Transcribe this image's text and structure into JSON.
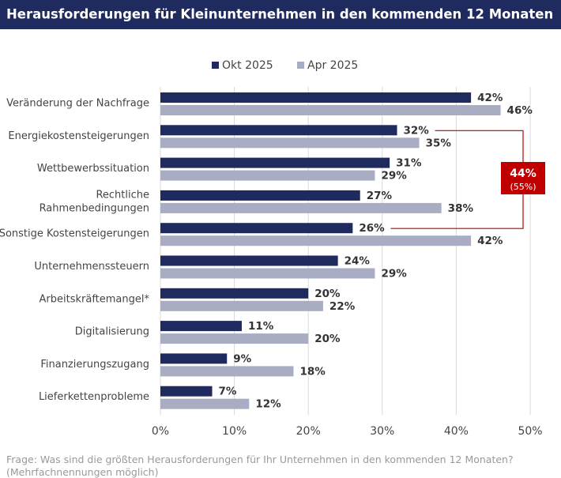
{
  "chart_data": {
    "type": "hbar",
    "title": "Herausforderungen für Kleinunternehmen in den kommenden 12 Monaten",
    "categories": [
      "Veränderung der Nachfrage",
      "Energiekostensteigerungen",
      "Wettbewerbssituation",
      "Rechtliche\nRahmenbedingungen",
      "Sonstige Kostensteigerungen",
      "Unternehmenssteuern",
      "Arbeitskräftemangel*",
      "Digitalisierung",
      "Finanzierungszugang",
      "Lieferkettenprobleme"
    ],
    "series": [
      {
        "name": "Okt 2025",
        "color": "#1f2a5e",
        "values": [
          42,
          32,
          31,
          27,
          26,
          24,
          20,
          11,
          9,
          7
        ],
        "value_labels": [
          "42%",
          "32%",
          "31%",
          "27%",
          "26%",
          "24%",
          "20%",
          "11%",
          "9%",
          "7%"
        ]
      },
      {
        "name": "Apr 2025",
        "color": "#a9adc4",
        "values": [
          46,
          35,
          29,
          38,
          42,
          29,
          22,
          20,
          18,
          12
        ],
        "value_labels": [
          "46%",
          "35%",
          "29%",
          "38%",
          "42%",
          "29%",
          "22%",
          "20%",
          "18%",
          "12%"
        ]
      }
    ],
    "xlim": [
      0,
      50
    ],
    "xticks": [
      {
        "value": 0,
        "label": "0%"
      },
      {
        "value": 10,
        "label": "10%"
      },
      {
        "value": 20,
        "label": "20%"
      },
      {
        "value": 30,
        "label": "30%"
      },
      {
        "value": 40,
        "label": "40%"
      },
      {
        "value": 50,
        "label": "50%"
      }
    ],
    "grid": true,
    "legend": "top",
    "annotation": {
      "text": "44%",
      "subtext": "(55%)",
      "color": "#c00000"
    },
    "footnote": "Frage: Was sind die größten Herausforderungen für Ihr Unternehmen in den kommenden 12 Monaten?\n(Mehrfachnennungen möglich)"
  }
}
